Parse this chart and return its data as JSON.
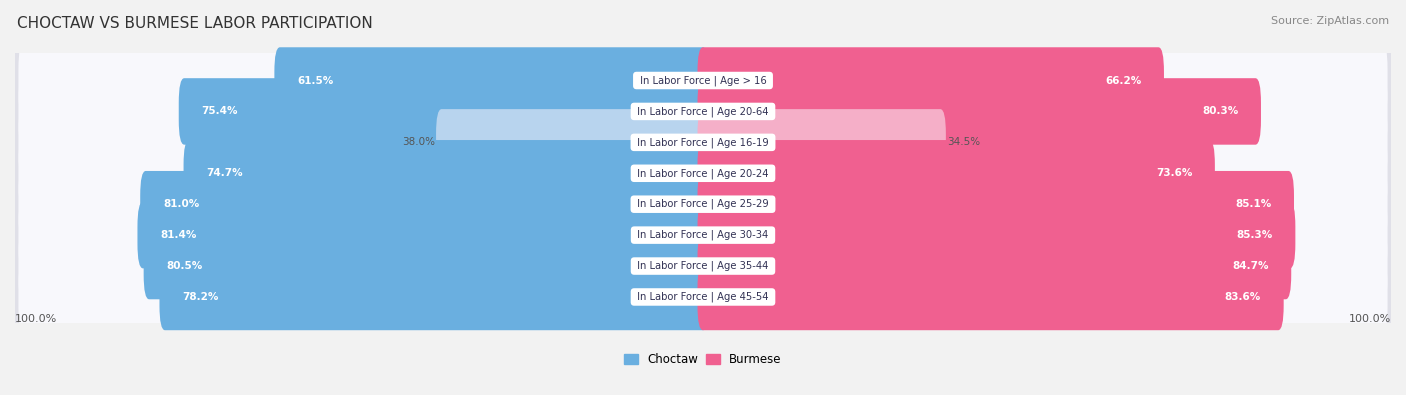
{
  "title": "CHOCTAW VS BURMESE LABOR PARTICIPATION",
  "source": "Source: ZipAtlas.com",
  "categories": [
    "In Labor Force | Age > 16",
    "In Labor Force | Age 20-64",
    "In Labor Force | Age 16-19",
    "In Labor Force | Age 20-24",
    "In Labor Force | Age 25-29",
    "In Labor Force | Age 30-34",
    "In Labor Force | Age 35-44",
    "In Labor Force | Age 45-54"
  ],
  "choctaw_values": [
    61.5,
    75.4,
    38.0,
    74.7,
    81.0,
    81.4,
    80.5,
    78.2
  ],
  "burmese_values": [
    66.2,
    80.3,
    34.5,
    73.6,
    85.1,
    85.3,
    84.7,
    83.6
  ],
  "choctaw_color": "#6aafe0",
  "choctaw_light_color": "#b8d4ee",
  "burmese_color": "#f06090",
  "burmese_light_color": "#f5afc8",
  "bg_color": "#f2f2f2",
  "row_bg_color": "#e0e0e8",
  "row_inner_color": "#f8f8fc",
  "label_bg_color": "#ffffff",
  "max_value": 100.0,
  "legend_choctaw": "Choctaw",
  "legend_burmese": "Burmese",
  "low_threshold": 50
}
